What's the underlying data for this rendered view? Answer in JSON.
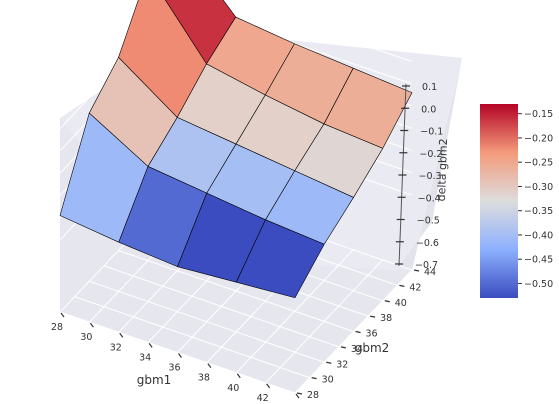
{
  "chart_data": {
    "type": "surface",
    "xlabel": "gbm1",
    "ylabel": "gbm2",
    "zlabel": "delta gbm2",
    "x": [
      28,
      32,
      36,
      40,
      44
    ],
    "y": [
      28,
      32,
      36,
      40,
      44
    ],
    "xticks": [
      "28",
      "30",
      "32",
      "34",
      "36",
      "38",
      "40",
      "42",
      "44"
    ],
    "yticks": [
      "28",
      "30",
      "32",
      "34",
      "36",
      "38",
      "40",
      "42",
      "44"
    ],
    "zticks": [
      "0.1",
      "0.0",
      "−0.1",
      "−0.2",
      "−0.3",
      "−0.4",
      "−0.5",
      "−0.6",
      "−0.7"
    ],
    "zlim": [
      -0.7,
      0.1
    ],
    "z": [
      [
        -0.59,
        -0.27,
        -0.16,
        0.08,
        0.1
      ],
      [
        -0.62,
        -0.42,
        -0.34,
        -0.24,
        -0.17
      ],
      [
        -0.64,
        -0.45,
        -0.37,
        -0.29,
        -0.2
      ],
      [
        -0.62,
        -0.48,
        -0.4,
        -0.33,
        -0.22
      ],
      [
        -0.6,
        -0.5,
        -0.43,
        -0.35,
        -0.24
      ]
    ],
    "face_values": [
      [
        -0.41,
        -0.29,
        -0.22,
        -0.16
      ],
      [
        -0.5,
        -0.39,
        -0.31,
        -0.25
      ],
      [
        -0.53,
        -0.4,
        -0.31,
        -0.26
      ],
      [
        -0.53,
        -0.41,
        -0.32,
        -0.26
      ]
    ],
    "colorbar": {
      "ticks": [
        "−0.15",
        "−0.20",
        "−0.25",
        "−0.30",
        "−0.35",
        "−0.40",
        "−0.45",
        "−0.50"
      ],
      "range": [
        -0.53,
        -0.13
      ],
      "colormap": "coolwarm"
    },
    "grid": true,
    "colors": {
      "pane": "#eaeaf2",
      "grid": "#ffffff",
      "edge": "#000000",
      "cmap_low": "#3b4cc0",
      "cmap_mid": "#dddddd",
      "cmap_high": "#b40426"
    }
  }
}
